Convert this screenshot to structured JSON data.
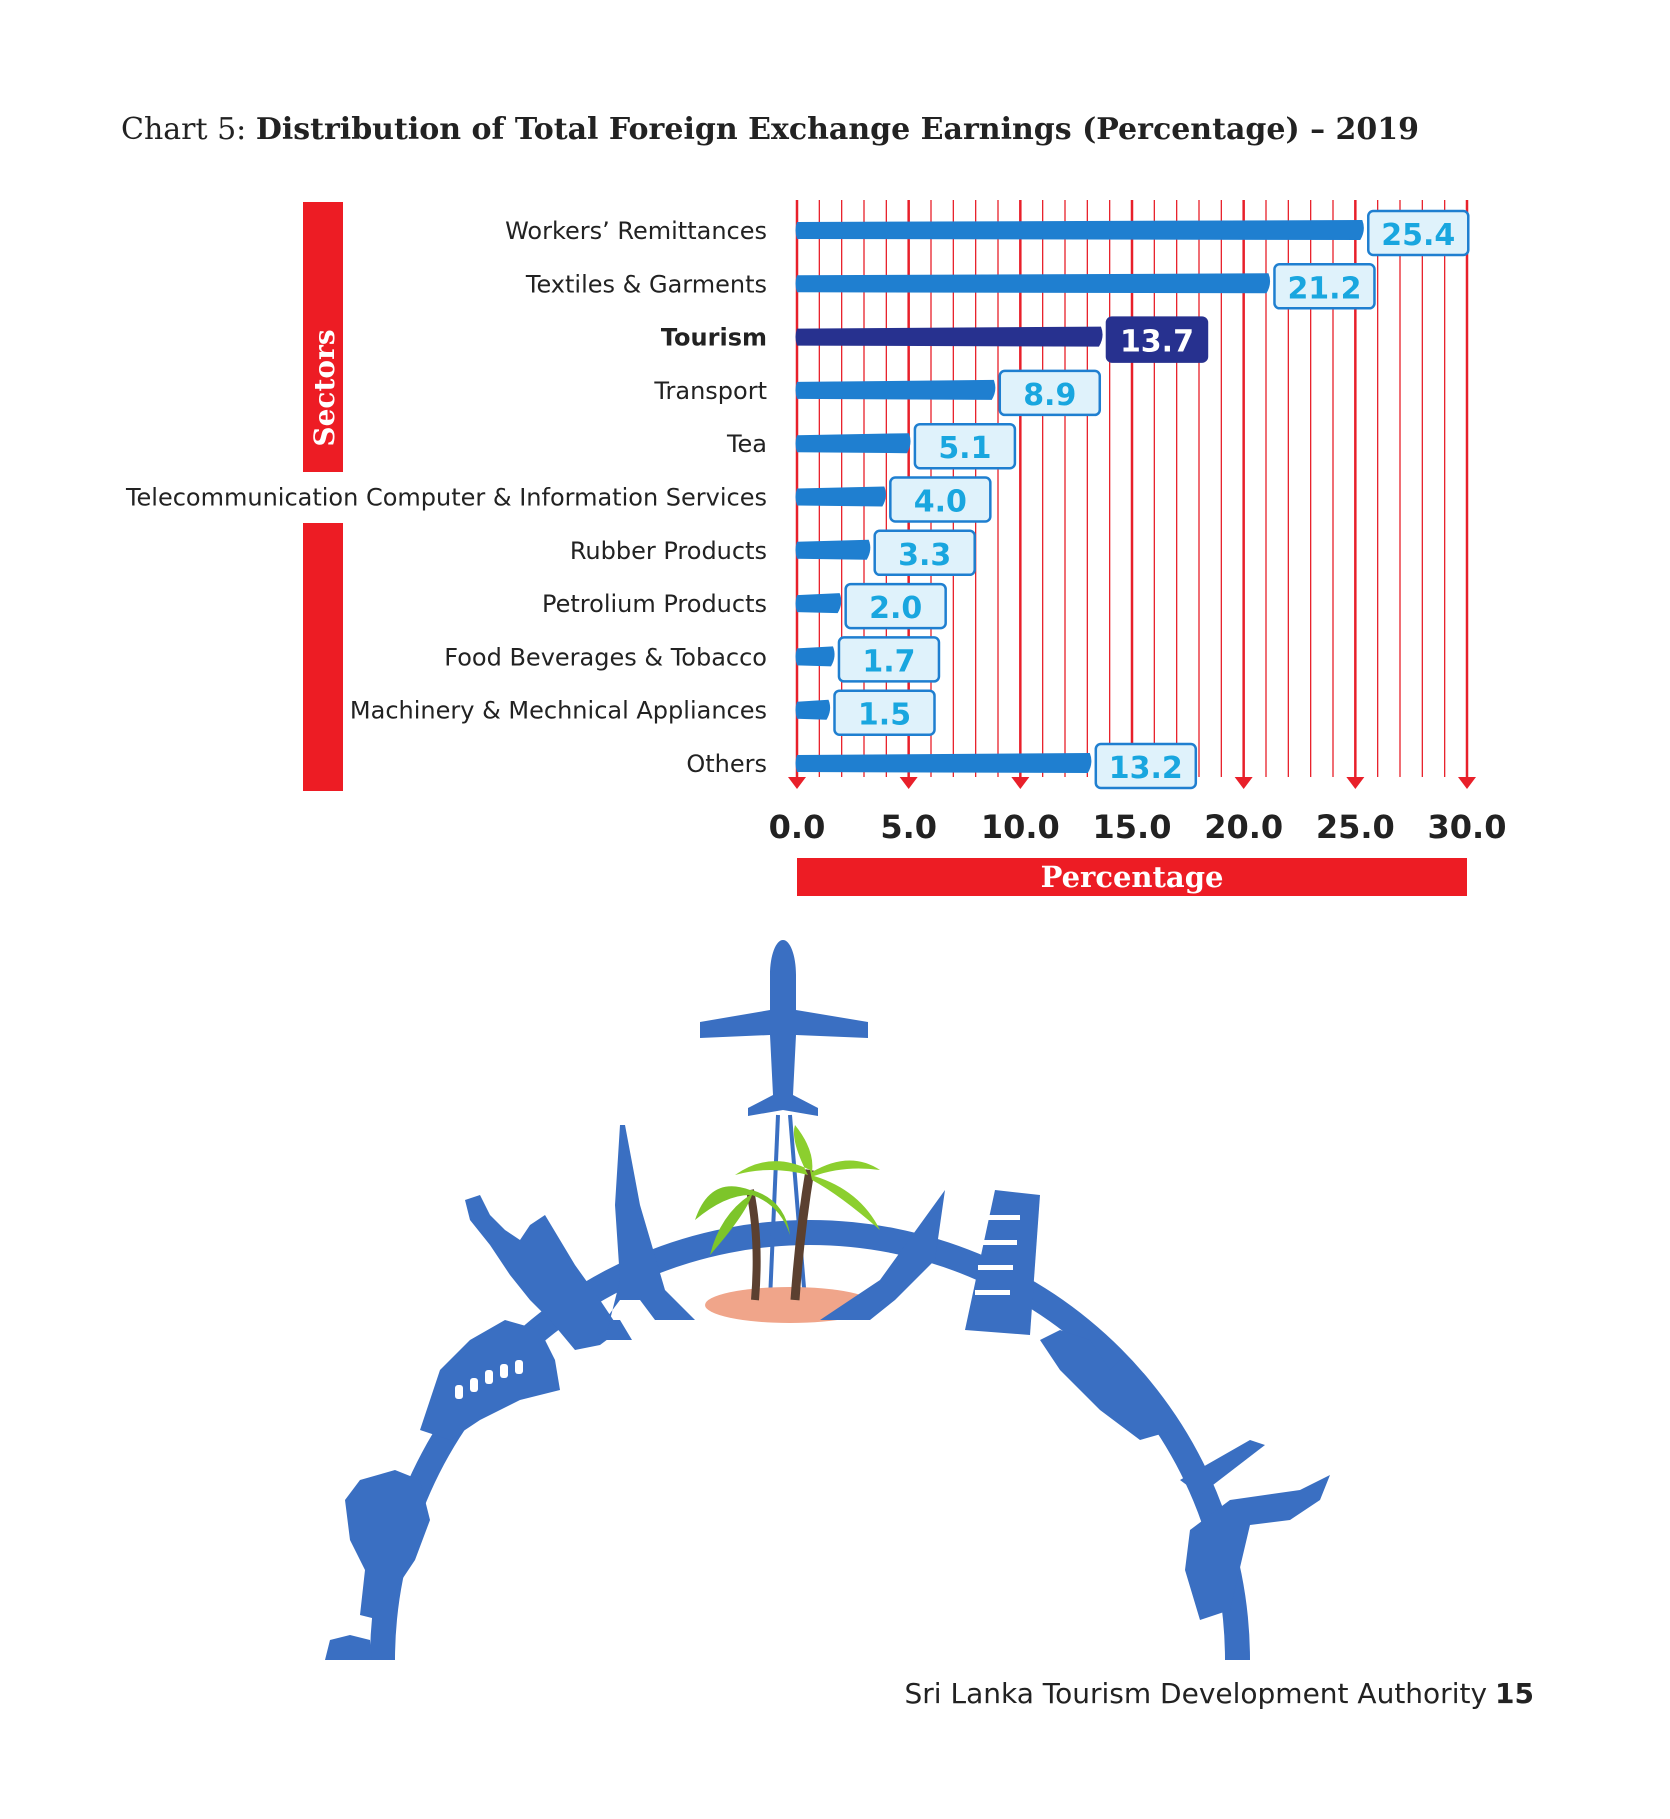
{
  "title": {
    "prefix": "Chart 5: ",
    "main": "Distribution of Total Foreign Exchange Earnings (Percentage) – 2019"
  },
  "chart_data": {
    "type": "bar",
    "orientation": "horizontal",
    "categories": [
      "Workers’ Remittances",
      "Textiles & Garments",
      "Tourism",
      "Transport",
      "Tea",
      "Telecommunication Computer & Information Services",
      "Rubber Products",
      "Petrolium Products",
      "Food Beverages & Tobacco",
      "Machinery & Mechnical Appliances",
      "Others"
    ],
    "values": [
      25.4,
      21.2,
      13.7,
      8.9,
      5.1,
      4.0,
      3.3,
      2.0,
      1.7,
      1.5,
      13.2
    ],
    "value_labels": [
      "25.4",
      "21.2",
      "13.7",
      "8.9",
      "5.1",
      "4.0",
      "3.3",
      "2.0",
      "1.7",
      "1.5",
      "13.2"
    ],
    "highlight": "Tourism",
    "xlabel": "Percentage",
    "ylabel": "Sectors",
    "xlim": [
      0,
      30
    ],
    "xticks": [
      "0.0",
      "5.0",
      "10.0",
      "15.0",
      "20.0",
      "25.0",
      "30.0"
    ],
    "colors": {
      "bar": "#1f7fd0",
      "highlight_bar": "#27318f",
      "label_fill": "#dff2fb",
      "label_text": "#19a6df",
      "grid": "#e8202a",
      "axis_band": "#ed1c24"
    }
  },
  "footer": {
    "text": "Sri Lanka Tourism Development Authority",
    "page_number": "15"
  },
  "illustration": {
    "name": "travel-globe-illustration",
    "color": "#3a6fc2"
  }
}
